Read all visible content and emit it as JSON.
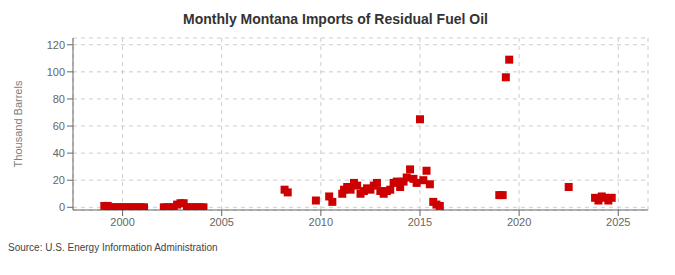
{
  "chart_data": {
    "type": "scatter",
    "title": "Monthly Montana Imports of Residual Fuel Oil",
    "ylabel": "Thousand Barrels",
    "annotations": [
      "Source: U.S. Energy Information Administration"
    ],
    "color": "#cc0000",
    "marker": "square",
    "grid": true,
    "xlim": [
      1997.5,
      2026.5
    ],
    "ylim": [
      -2,
      125
    ],
    "xticks": [
      2000,
      2005,
      2010,
      2015,
      2020,
      2025
    ],
    "yticks": [
      0,
      20,
      40,
      60,
      80,
      100,
      120
    ],
    "x": [
      1999.08,
      1999.25,
      1999.42,
      1999.58,
      1999.75,
      1999.92,
      2000.08,
      2000.25,
      2000.42,
      2000.58,
      2000.75,
      2000.92,
      2001.08,
      2002.08,
      2002.25,
      2002.42,
      2002.58,
      2002.75,
      2002.92,
      2003.08,
      2003.25,
      2003.42,
      2003.58,
      2003.75,
      2003.92,
      2004.08,
      2008.17,
      2008.33,
      2009.75,
      2010.42,
      2010.58,
      2011.08,
      2011.17,
      2011.33,
      2011.5,
      2011.67,
      2011.83,
      2012.0,
      2012.17,
      2012.33,
      2012.5,
      2012.67,
      2012.83,
      2013.0,
      2013.17,
      2013.33,
      2013.5,
      2013.67,
      2013.83,
      2014.0,
      2014.17,
      2014.33,
      2014.5,
      2014.67,
      2014.83,
      2015.0,
      2015.17,
      2015.33,
      2015.5,
      2015.67,
      2015.83,
      2016.0,
      2019.0,
      2019.17,
      2019.33,
      2019.5,
      2022.5,
      2023.83,
      2024.0,
      2024.17,
      2024.33,
      2024.5,
      2024.67
    ],
    "values": [
      1,
      1,
      0,
      0,
      0,
      0,
      0,
      0,
      0,
      0,
      0,
      0,
      0,
      0,
      0,
      0,
      0,
      2,
      3,
      3,
      0,
      0,
      0,
      0,
      0,
      0,
      13,
      11,
      5,
      8,
      4,
      10,
      13,
      15,
      13,
      18,
      16,
      10,
      12,
      14,
      13,
      16,
      18,
      12,
      10,
      12,
      13,
      18,
      19,
      15,
      19,
      22,
      28,
      21,
      18,
      65,
      20,
      27,
      17,
      4,
      2,
      1,
      9,
      9,
      96,
      109,
      15,
      7,
      5,
      8,
      7,
      5,
      7
    ]
  }
}
